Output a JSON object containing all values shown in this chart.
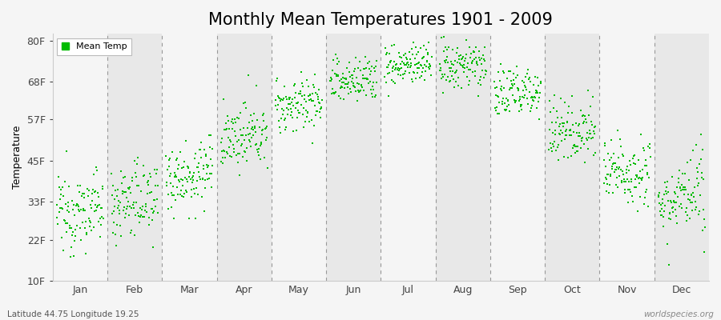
{
  "title": "Monthly Mean Temperatures 1901 - 2009",
  "ylabel": "Temperature",
  "bottom_left": "Latitude 44.75 Longitude 19.25",
  "bottom_right": "worldspecies.org",
  "legend_label": "Mean Temp",
  "yticks": [
    10,
    22,
    33,
    45,
    57,
    68,
    80
  ],
  "ytick_labels": [
    "10F",
    "22F",
    "33F",
    "45F",
    "57F",
    "68F",
    "80F"
  ],
  "ylim": [
    10,
    82
  ],
  "months": [
    "Jan",
    "Feb",
    "Mar",
    "Apr",
    "May",
    "Jun",
    "Jul",
    "Aug",
    "Sep",
    "Oct",
    "Nov",
    "Dec"
  ],
  "dot_color": "#00bb00",
  "bg_color": "#f5f5f5",
  "band_color_light": "#f5f5f5",
  "band_color_dark": "#e8e8e8",
  "title_fontsize": 15,
  "axis_label_fontsize": 9,
  "tick_fontsize": 9,
  "monthly_mean_temps_F": {
    "Jan": 30.5,
    "Feb": 33.5,
    "Mar": 41.0,
    "Apr": 52.0,
    "May": 61.5,
    "Jun": 68.5,
    "Jul": 73.0,
    "Aug": 72.5,
    "Sep": 65.0,
    "Oct": 54.0,
    "Nov": 42.0,
    "Dec": 34.0
  },
  "monthly_std_F": {
    "Jan": 5.5,
    "Feb": 5.5,
    "Mar": 5.0,
    "Apr": 4.5,
    "May": 4.0,
    "Jun": 3.5,
    "Jul": 3.0,
    "Aug": 3.5,
    "Sep": 4.0,
    "Oct": 4.5,
    "Nov": 5.0,
    "Dec": 5.5
  },
  "monthly_trend_F": {
    "Jan": 2.0,
    "Feb": 2.0,
    "Mar": 2.0,
    "Apr": 2.0,
    "May": 1.5,
    "Jun": 1.5,
    "Jul": 1.5,
    "Aug": 1.5,
    "Sep": 2.0,
    "Oct": 2.0,
    "Nov": 2.0,
    "Dec": 2.0
  },
  "n_years": 109,
  "start_year": 1901,
  "end_year": 2009
}
